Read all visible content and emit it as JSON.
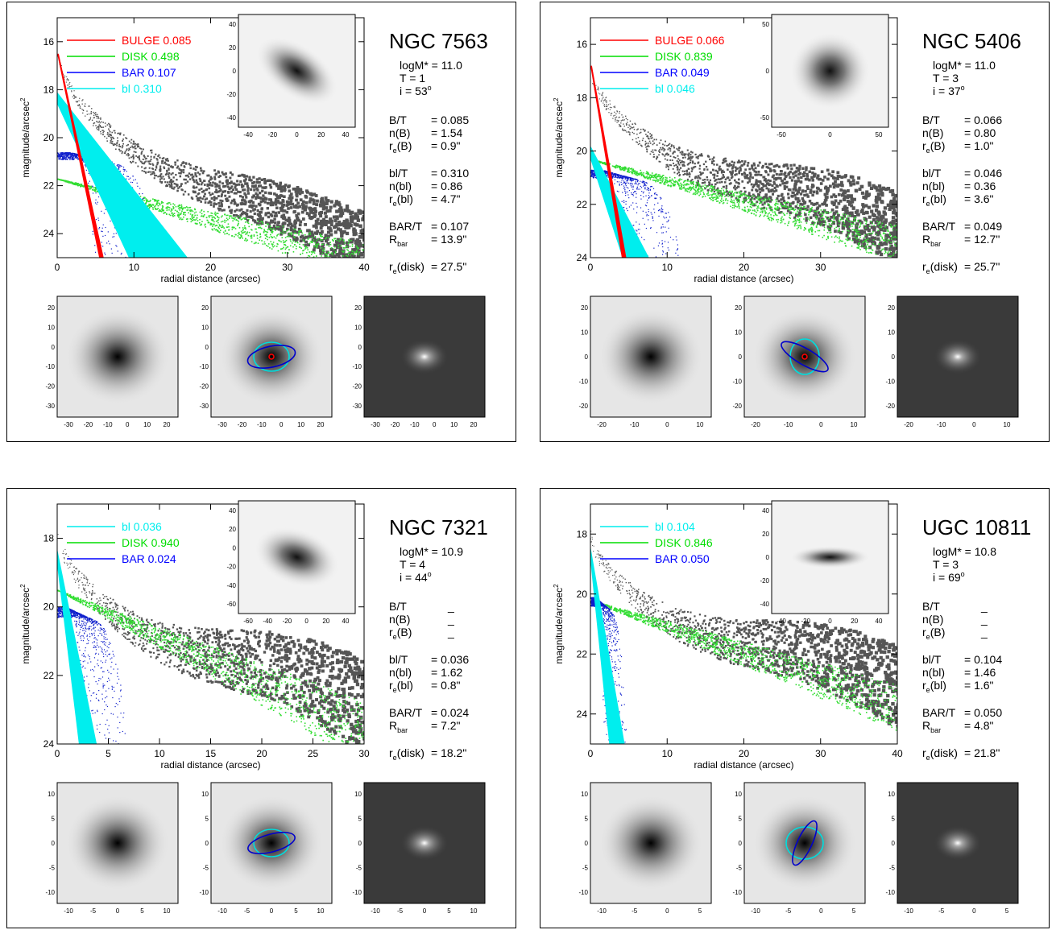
{
  "panels": [
    {
      "id": "ngc7563",
      "name": "NGC 7563",
      "legend": [
        {
          "label": "BULGE",
          "value": "0.085",
          "color": "#ff0000"
        },
        {
          "label": "DISK",
          "value": "0.498",
          "color": "#00dd00"
        },
        {
          "label": "BAR",
          "value": "0.107",
          "color": "#0000ff"
        },
        {
          "label": "bl",
          "value": "0.310",
          "color": "#00eeee"
        }
      ],
      "params_a": [
        {
          "k": "logM* = ",
          "v": "11.0"
        },
        {
          "k": "T = ",
          "v": "1"
        },
        {
          "k": "i = ",
          "v": "53",
          "sup": "o"
        }
      ],
      "params_b": [
        [
          {
            "k": "B/T",
            "v": "= 0.085"
          },
          {
            "k": "n(B)",
            "v": "= 1.54"
          },
          {
            "k": "r",
            "sub": "e",
            "k2": "(B)",
            "v": "=   0.9\""
          }
        ],
        [
          {
            "k": "bl/T",
            "v": "= 0.310"
          },
          {
            "k": "n(bl)",
            "v": "= 0.86"
          },
          {
            "k": "r",
            "sub": "e",
            "k2": "(bl)",
            "v": "=   4.7\""
          }
        ],
        [
          {
            "k": "BAR/T",
            "v": "= 0.107"
          },
          {
            "k": "R",
            "sub": "bar",
            "k2": "",
            "v": "= 13.9\""
          }
        ],
        [
          {
            "k": "r",
            "sub": "e",
            "k2": "(disk)",
            "v": "= 27.5\""
          }
        ]
      ],
      "profile": {
        "xlabel": "radial distance (arcsec)",
        "ylabel": "magnitude/arcsec",
        "ylabel_sup": "2",
        "xlim": [
          0,
          40
        ],
        "ylim": [
          25,
          15
        ],
        "xticks": [
          "0",
          "10",
          "20",
          "30",
          "40"
        ],
        "xtick_vals": [
          0,
          10,
          20,
          30,
          40
        ],
        "yticks": [
          "16",
          "18",
          "20",
          "22",
          "24"
        ],
        "ytick_vals": [
          16,
          18,
          20,
          22,
          24
        ]
      },
      "inset": {
        "xticks": [
          "-40",
          "-20",
          "0",
          "20",
          "40"
        ],
        "yticks": [
          "40",
          "20",
          "0",
          "-20",
          "-40"
        ]
      },
      "images": {
        "xticks": [
          "-30",
          "-20",
          "-10",
          "0",
          "10",
          "20"
        ],
        "yticks": [
          "20",
          "10",
          "0",
          "-10",
          "-20",
          "-30"
        ]
      },
      "bulge_ellipse": true
    },
    {
      "id": "ngc5406",
      "name": "NGC 5406",
      "legend": [
        {
          "label": "BULGE",
          "value": "0.066",
          "color": "#ff0000"
        },
        {
          "label": "DISK",
          "value": "0.839",
          "color": "#00dd00"
        },
        {
          "label": "BAR",
          "value": "0.049",
          "color": "#0000ff"
        },
        {
          "label": "bl",
          "value": "0.046",
          "color": "#00eeee"
        }
      ],
      "params_a": [
        {
          "k": "logM* = ",
          "v": "11.0"
        },
        {
          "k": "T = ",
          "v": "3"
        },
        {
          "k": "i = ",
          "v": "37",
          "sup": "o"
        }
      ],
      "params_b": [
        [
          {
            "k": "B/T",
            "v": "= 0.066"
          },
          {
            "k": "n(B)",
            "v": "= 0.80"
          },
          {
            "k": "r",
            "sub": "e",
            "k2": "(B)",
            "v": "=   1.0\""
          }
        ],
        [
          {
            "k": "bl/T",
            "v": "= 0.046"
          },
          {
            "k": "n(bl)",
            "v": "= 0.36"
          },
          {
            "k": "r",
            "sub": "e",
            "k2": "(bl)",
            "v": "=   3.6\""
          }
        ],
        [
          {
            "k": "BAR/T",
            "v": "= 0.049"
          },
          {
            "k": "R",
            "sub": "bar",
            "k2": "",
            "v": "= 12.7\""
          }
        ],
        [
          {
            "k": "r",
            "sub": "e",
            "k2": "(disk)",
            "v": "= 25.7\""
          }
        ]
      ],
      "profile": {
        "xlabel": "radial distance (arcsec)",
        "ylabel": "magnitude/arcsec",
        "ylabel_sup": "2",
        "xlim": [
          0,
          40
        ],
        "ylim": [
          24,
          15
        ],
        "xticks": [
          "0",
          "10",
          "20",
          "30"
        ],
        "xtick_vals": [
          0,
          10,
          20,
          30
        ],
        "yticks": [
          "16",
          "18",
          "20",
          "22",
          "24"
        ],
        "ytick_vals": [
          16,
          18,
          20,
          22,
          24
        ]
      },
      "inset": {
        "xticks": [
          "-50",
          "0",
          "50"
        ],
        "yticks": [
          "50",
          "0",
          "-50"
        ]
      },
      "images": {
        "xticks": [
          "-20",
          "-10",
          "0",
          "10"
        ],
        "yticks": [
          "20",
          "10",
          "0",
          "-10",
          "-20"
        ]
      },
      "bulge_ellipse": true
    },
    {
      "id": "ngc7321",
      "name": "NGC 7321",
      "legend": [
        {
          "label": "bl",
          "value": "0.036",
          "color": "#00eeee"
        },
        {
          "label": "DISK",
          "value": "0.940",
          "color": "#00dd00"
        },
        {
          "label": "BAR",
          "value": "0.024",
          "color": "#0000ff"
        }
      ],
      "params_a": [
        {
          "k": "logM* = ",
          "v": "10.9"
        },
        {
          "k": "T = ",
          "v": "4"
        },
        {
          "k": "i = ",
          "v": "44",
          "sup": "o"
        }
      ],
      "params_b": [
        [
          {
            "k": "B/T",
            "v": "_"
          },
          {
            "k": "n(B)",
            "v": "_"
          },
          {
            "k": "r",
            "sub": "e",
            "k2": "(B)",
            "v": "_"
          }
        ],
        [
          {
            "k": "bl/T",
            "v": "= 0.036"
          },
          {
            "k": "n(bl)",
            "v": "= 1.62"
          },
          {
            "k": "r",
            "sub": "e",
            "k2": "(bl)",
            "v": "=   0.8\""
          }
        ],
        [
          {
            "k": "BAR/T",
            "v": "= 0.024"
          },
          {
            "k": "R",
            "sub": "bar",
            "k2": "",
            "v": "=   7.2\""
          }
        ],
        [
          {
            "k": "r",
            "sub": "e",
            "k2": "(disk)",
            "v": "= 18.2\""
          }
        ]
      ],
      "profile": {
        "xlabel": "radial distance (arcsec)",
        "ylabel": "magnitude/arcsec",
        "ylabel_sup": "2",
        "xlim": [
          0,
          30
        ],
        "ylim": [
          24,
          17
        ],
        "xticks": [
          "0",
          "5",
          "10",
          "15",
          "20",
          "25",
          "30"
        ],
        "xtick_vals": [
          0,
          5,
          10,
          15,
          20,
          25,
          30
        ],
        "yticks": [
          "18",
          "20",
          "22",
          "24"
        ],
        "ytick_vals": [
          18,
          20,
          22,
          24
        ]
      },
      "inset": {
        "xticks": [
          "-60",
          "-40",
          "-20",
          "0",
          "20",
          "40"
        ],
        "yticks": [
          "40",
          "20",
          "0",
          "-20",
          "-40",
          "-60"
        ]
      },
      "images": {
        "xticks": [
          "-10",
          "-5",
          "0",
          "5",
          "10"
        ],
        "yticks": [
          "10",
          "5",
          "0",
          "-5",
          "-10"
        ]
      },
      "bulge_ellipse": false
    },
    {
      "id": "ugc10811",
      "name": "UGC 10811",
      "legend": [
        {
          "label": "bl",
          "value": "0.104",
          "color": "#00eeee"
        },
        {
          "label": "DISK",
          "value": "0.846",
          "color": "#00dd00"
        },
        {
          "label": "BAR",
          "value": "0.050",
          "color": "#0000ff"
        }
      ],
      "params_a": [
        {
          "k": "logM* = ",
          "v": "10.8"
        },
        {
          "k": "T = ",
          "v": "3"
        },
        {
          "k": "i = ",
          "v": "69",
          "sup": "o"
        }
      ],
      "params_b": [
        [
          {
            "k": "B/T",
            "v": "_"
          },
          {
            "k": "n(B)",
            "v": "_"
          },
          {
            "k": "r",
            "sub": "e",
            "k2": "(B)",
            "v": "_"
          }
        ],
        [
          {
            "k": "bl/T",
            "v": "= 0.104"
          },
          {
            "k": "n(bl)",
            "v": "= 1.46"
          },
          {
            "k": "r",
            "sub": "e",
            "k2": "(bl)",
            "v": "=   1.6\""
          }
        ],
        [
          {
            "k": "BAR/T",
            "v": "= 0.050"
          },
          {
            "k": "R",
            "sub": "bar",
            "k2": "",
            "v": "=   4.8\""
          }
        ],
        [
          {
            "k": "r",
            "sub": "e",
            "k2": "(disk)",
            "v": "= 21.8\""
          }
        ]
      ],
      "profile": {
        "xlabel": "radial distance (arcsec)",
        "ylabel": "magnitude/arcsec",
        "ylabel_sup": "2",
        "xlim": [
          0,
          40
        ],
        "ylim": [
          25,
          17
        ],
        "xticks": [
          "0",
          "10",
          "20",
          "30",
          "40"
        ],
        "xtick_vals": [
          0,
          10,
          20,
          30,
          40
        ],
        "yticks": [
          "18",
          "20",
          "22",
          "24"
        ],
        "ytick_vals": [
          18,
          20,
          22,
          24
        ]
      },
      "inset": {
        "xticks": [
          "-40",
          "-20",
          "0",
          "20",
          "40"
        ],
        "yticks": [
          "40",
          "20",
          "0",
          "-20",
          "-40"
        ]
      },
      "images": {
        "xticks": [
          "-10",
          "-5",
          "0",
          "5"
        ],
        "yticks": [
          "10",
          "5",
          "0",
          "-5",
          "-10"
        ]
      },
      "bulge_ellipse": false
    }
  ],
  "chart_data": [
    {
      "type": "scatter",
      "title": "NGC 7563",
      "xlabel": "radial distance (arcsec)",
      "ylabel": "magnitude/arcsec2",
      "xlim": [
        0,
        40
      ],
      "ylim": [
        25,
        15
      ],
      "series": [
        {
          "name": "BULGE",
          "value": 0.085
        },
        {
          "name": "DISK",
          "value": 0.498
        },
        {
          "name": "BAR",
          "value": 0.107
        },
        {
          "name": "bl",
          "value": 0.31
        }
      ]
    },
    {
      "type": "scatter",
      "title": "NGC 5406",
      "xlabel": "radial distance (arcsec)",
      "ylabel": "magnitude/arcsec2",
      "xlim": [
        0,
        40
      ],
      "ylim": [
        24,
        15
      ],
      "series": [
        {
          "name": "BULGE",
          "value": 0.066
        },
        {
          "name": "DISK",
          "value": 0.839
        },
        {
          "name": "BAR",
          "value": 0.049
        },
        {
          "name": "bl",
          "value": 0.046
        }
      ]
    },
    {
      "type": "scatter",
      "title": "NGC 7321",
      "xlabel": "radial distance (arcsec)",
      "ylabel": "magnitude/arcsec2",
      "xlim": [
        0,
        30
      ],
      "ylim": [
        24,
        17
      ],
      "series": [
        {
          "name": "bl",
          "value": 0.036
        },
        {
          "name": "DISK",
          "value": 0.94
        },
        {
          "name": "BAR",
          "value": 0.024
        }
      ]
    },
    {
      "type": "scatter",
      "title": "UGC 10811",
      "xlabel": "radial distance (arcsec)",
      "ylabel": "magnitude/arcsec2",
      "xlim": [
        0,
        40
      ],
      "ylim": [
        25,
        17
      ],
      "series": [
        {
          "name": "bl",
          "value": 0.104
        },
        {
          "name": "DISK",
          "value": 0.846
        },
        {
          "name": "BAR",
          "value": 0.05
        }
      ]
    }
  ]
}
